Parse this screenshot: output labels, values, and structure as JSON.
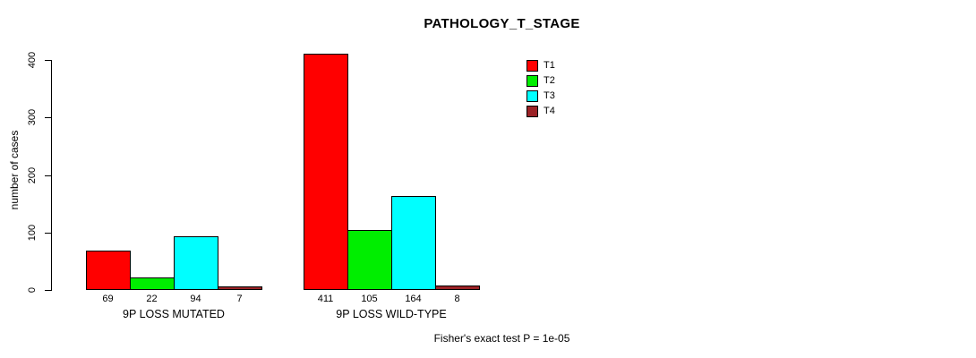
{
  "title": "PATHOLOGY_T_STAGE",
  "footer": "Fisher's exact test P = 1e-05",
  "chart_data": {
    "type": "bar",
    "title": "PATHOLOGY_T_STAGE",
    "categories": [
      "9P LOSS MUTATED",
      "9P LOSS WILD-TYPE"
    ],
    "series": [
      {
        "name": "T1",
        "color": "#ff0000",
        "values": [
          69,
          411
        ]
      },
      {
        "name": "T2",
        "color": "#00ee00",
        "values": [
          22,
          105
        ]
      },
      {
        "name": "T3",
        "color": "#00ffff",
        "values": [
          94,
          164
        ]
      },
      {
        "name": "T4",
        "color": "#9b2226",
        "values": [
          7,
          8
        ]
      }
    ],
    "bar_value_labels": {
      "9P LOSS MUTATED": [
        "69",
        "22",
        "94",
        "7"
      ],
      "9P LOSS WILD-TYPE": [
        "411",
        "105",
        "164",
        "8"
      ]
    },
    "xlabel": "",
    "ylabel": "number of cases",
    "ylim": [
      0,
      400
    ],
    "yticks": [
      "0",
      "100",
      "200",
      "300",
      "400"
    ],
    "grid": false,
    "legend_position": "top-right",
    "legend_entries": [
      "T1",
      "T2",
      "T3",
      "T4"
    ],
    "annotation": "Fisher's exact test P = 1e-05"
  }
}
